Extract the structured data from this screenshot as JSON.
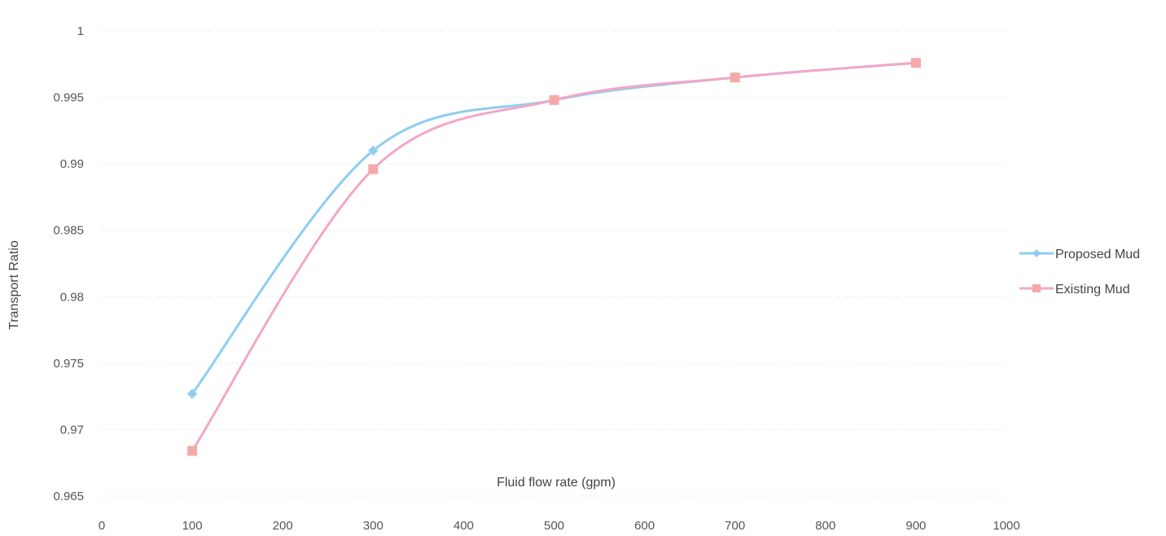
{
  "chart_data": {
    "type": "line",
    "title": "",
    "xlabel": "Fluid flow  rate (gpm)",
    "ylabel": "Transport Ratio",
    "xlim": [
      0,
      1000
    ],
    "ylim": [
      0.965,
      1
    ],
    "x_ticks": [
      "0",
      "100",
      "200",
      "300",
      "400",
      "500",
      "600",
      "700",
      "800",
      "900",
      "1000"
    ],
    "y_ticks": [
      "0.965",
      "0.97",
      "0.975",
      "0.98",
      "0.985",
      "0.99",
      "0.995",
      "1"
    ],
    "grid": true,
    "legend_position": "right",
    "smooth": true,
    "series": [
      {
        "name": "Proposed Mud",
        "color": "#8ecdf0",
        "marker": "diamond",
        "x": [
          100,
          300,
          500,
          700,
          900
        ],
        "y": [
          0.9727,
          0.991,
          0.9948,
          0.9965,
          0.9976
        ]
      },
      {
        "name": "Existing Mud",
        "color": "#f4a6c6",
        "marker_color": "#f5a9a9",
        "marker": "square",
        "x": [
          100,
          300,
          500,
          700,
          900
        ],
        "y": [
          0.9684,
          0.9896,
          0.9948,
          0.9965,
          0.9976
        ]
      }
    ]
  }
}
